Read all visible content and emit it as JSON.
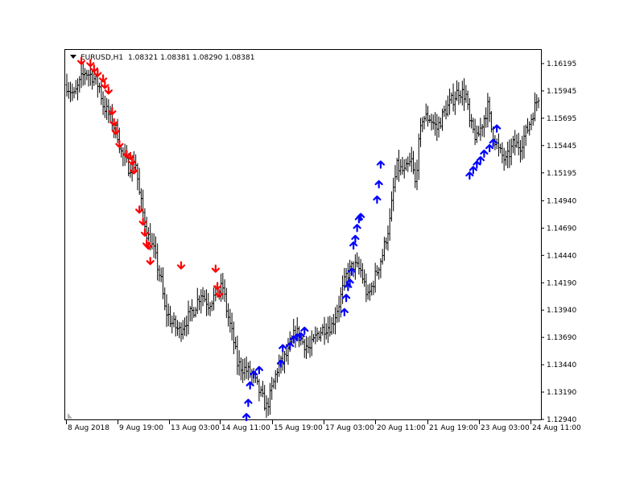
{
  "header": {
    "symbol": "EURUSD,H1",
    "quote": "1.08321 1.08381 1.08290 1.08381"
  },
  "colors": {
    "background": "#ffffff",
    "bars": "#000000",
    "sell_arrow": "#ff0000",
    "buy_arrow": "#0000ff",
    "frame": "#000000"
  },
  "chart_data": {
    "type": "bar",
    "subtype": "ohlc-price-chart",
    "grid": false,
    "ylim": [
      1.1294,
      1.1632
    ],
    "y_ticks": [
      "1.16195",
      "1.15945",
      "1.15695",
      "1.15445",
      "1.15195",
      "1.14940",
      "1.14690",
      "1.14440",
      "1.14190",
      "1.13940",
      "1.13690",
      "1.13440",
      "1.13190",
      "1.12940"
    ],
    "x_ticks": [
      "8 Aug 2018",
      "9 Aug 19:00",
      "13 Aug 03:00",
      "14 Aug 11:00",
      "15 Aug 19:00",
      "17 Aug 03:00",
      "20 Aug 11:00",
      "21 Aug 19:00",
      "23 Aug 03:00",
      "24 Aug 11:00"
    ],
    "close_path": [
      [
        0,
        1.16
      ],
      [
        4,
        1.159
      ],
      [
        8,
        1.1605
      ],
      [
        10,
        1.1612
      ],
      [
        14,
        1.1608
      ],
      [
        18,
        1.1598
      ],
      [
        20,
        1.1582
      ],
      [
        24,
        1.157
      ],
      [
        28,
        1.1555
      ],
      [
        30,
        1.1538
      ],
      [
        34,
        1.1525
      ],
      [
        38,
        1.1528
      ],
      [
        40,
        1.15
      ],
      [
        44,
        1.1465
      ],
      [
        48,
        1.1448
      ],
      [
        52,
        1.142
      ],
      [
        54,
        1.1395
      ],
      [
        58,
        1.1382
      ],
      [
        62,
        1.1375
      ],
      [
        66,
        1.1385
      ],
      [
        70,
        1.1395
      ],
      [
        74,
        1.141
      ],
      [
        78,
        1.14
      ],
      [
        82,
        1.1408
      ],
      [
        86,
        1.1415
      ],
      [
        88,
        1.1395
      ],
      [
        92,
        1.1365
      ],
      [
        94,
        1.1345
      ],
      [
        98,
        1.134
      ],
      [
        102,
        1.1335
      ],
      [
        106,
        1.132
      ],
      [
        110,
        1.1305
      ],
      [
        112,
        1.1315
      ],
      [
        116,
        1.134
      ],
      [
        118,
        1.1345
      ],
      [
        122,
        1.1355
      ],
      [
        126,
        1.1375
      ],
      [
        130,
        1.1365
      ],
      [
        134,
        1.1358
      ],
      [
        138,
        1.1372
      ],
      [
        142,
        1.1378
      ],
      [
        146,
        1.138
      ],
      [
        150,
        1.14
      ],
      [
        154,
        1.1425
      ],
      [
        158,
        1.1435
      ],
      [
        162,
        1.143
      ],
      [
        166,
        1.1405
      ],
      [
        170,
        1.1425
      ],
      [
        174,
        1.1445
      ],
      [
        178,
        1.1475
      ],
      [
        180,
        1.1505
      ],
      [
        182,
        1.1525
      ],
      [
        186,
        1.152
      ],
      [
        190,
        1.153
      ],
      [
        192,
        1.151
      ],
      [
        194,
        1.1545
      ],
      [
        196,
        1.157
      ],
      [
        200,
        1.157
      ],
      [
        204,
        1.156
      ],
      [
        208,
        1.1575
      ],
      [
        212,
        1.1585
      ],
      [
        216,
        1.1595
      ],
      [
        220,
        1.159
      ],
      [
        222,
        1.1565
      ],
      [
        226,
        1.155
      ],
      [
        230,
        1.157
      ],
      [
        232,
        1.158
      ],
      [
        234,
        1.156
      ],
      [
        238,
        1.154
      ],
      [
        242,
        1.153
      ],
      [
        246,
        1.1545
      ],
      [
        250,
        1.1545
      ],
      [
        254,
        1.156
      ],
      [
        258,
        1.158
      ],
      [
        260,
        1.159
      ]
    ],
    "sell_signals": [
      [
        8,
        1.1619
      ],
      [
        13,
        1.1617
      ],
      [
        15,
        1.1612
      ],
      [
        17,
        1.1608
      ],
      [
        20,
        1.1603
      ],
      [
        21,
        1.1597
      ],
      [
        23,
        1.1592
      ],
      [
        25,
        1.1573
      ],
      [
        26,
        1.1563
      ],
      [
        27,
        1.1555
      ],
      [
        29,
        1.1543
      ],
      [
        33,
        1.1534
      ],
      [
        35,
        1.1532
      ],
      [
        36,
        1.1527
      ],
      [
        37,
        1.1519
      ],
      [
        40,
        1.1483
      ],
      [
        42,
        1.1472
      ],
      [
        43,
        1.1462
      ],
      [
        44,
        1.1452
      ],
      [
        45,
        1.145
      ],
      [
        46,
        1.1436
      ],
      [
        63,
        1.1432
      ],
      [
        82,
        1.1429
      ],
      [
        83,
        1.1413
      ],
      [
        84,
        1.1406
      ]
    ],
    "buy_signals": [
      [
        99,
        1.1299
      ],
      [
        100,
        1.1312
      ],
      [
        101,
        1.1328
      ],
      [
        103,
        1.1338
      ],
      [
        106,
        1.1342
      ],
      [
        118,
        1.1348
      ],
      [
        119,
        1.1362
      ],
      [
        123,
        1.1364
      ],
      [
        125,
        1.137
      ],
      [
        127,
        1.1372
      ],
      [
        129,
        1.1373
      ],
      [
        131,
        1.1378
      ],
      [
        153,
        1.1395
      ],
      [
        154,
        1.1408
      ],
      [
        155,
        1.1418
      ],
      [
        156,
        1.1422
      ],
      [
        157,
        1.1432
      ],
      [
        158,
        1.1456
      ],
      [
        159,
        1.1462
      ],
      [
        160,
        1.1472
      ],
      [
        161,
        1.148
      ],
      [
        162,
        1.1482
      ],
      [
        171,
        1.1498
      ],
      [
        172,
        1.1512
      ],
      [
        173,
        1.153
      ],
      [
        222,
        1.152
      ],
      [
        224,
        1.1525
      ],
      [
        226,
        1.153
      ],
      [
        228,
        1.1534
      ],
      [
        230,
        1.154
      ],
      [
        233,
        1.1545
      ],
      [
        235,
        1.155
      ],
      [
        237,
        1.1563
      ]
    ]
  }
}
